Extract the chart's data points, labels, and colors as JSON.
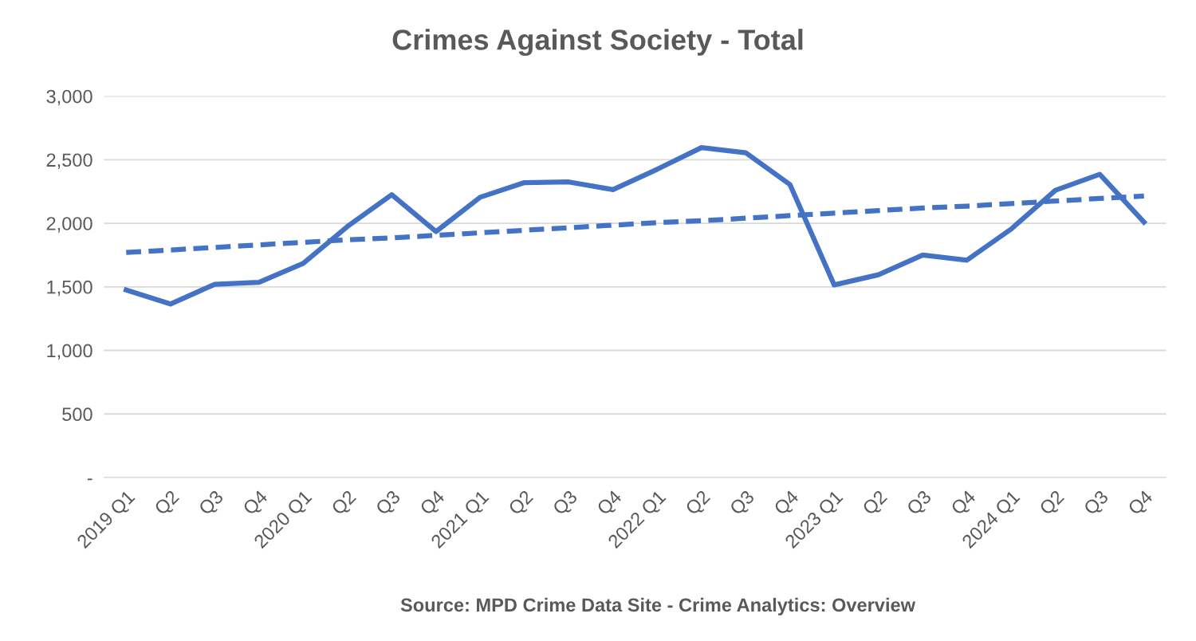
{
  "chart_data": {
    "type": "line",
    "title": "Crimes Against Society - Total",
    "categories": [
      "2019 Q1",
      "Q2",
      "Q3",
      "Q4",
      "2020 Q1",
      "Q2",
      "Q3",
      "Q4",
      "2021 Q1",
      "Q2",
      "Q3",
      "Q4",
      "2022 Q1",
      "Q2",
      "Q3",
      "Q4",
      "2023 Q1",
      "Q2",
      "Q3",
      "Q4",
      "2024 Q1",
      "Q2",
      "Q3",
      "Q4"
    ],
    "series": [
      {
        "color": "#4472c4",
        "line_style": "solid",
        "values": [
          1475,
          1365,
          1520,
          1535,
          1685,
          1975,
          2225,
          1935,
          2205,
          2320,
          2325,
          2265,
          2425,
          2595,
          2555,
          2305,
          1515,
          1595,
          1750,
          1710,
          1955,
          2260,
          2385,
          2010
        ]
      },
      {
        "color": "#4472c4",
        "line_style": "dashed",
        "values": [
          1770,
          1790,
          1810,
          1830,
          1850,
          1870,
          1885,
          1905,
          1925,
          1945,
          1965,
          1985,
          2005,
          2020,
          2040,
          2060,
          2080,
          2100,
          2120,
          2135,
          2155,
          2175,
          2195,
          2215
        ]
      }
    ],
    "ylim": [
      0,
      3000
    ],
    "yticks": [
      {
        "value": 0,
        "label": "-"
      },
      {
        "value": 500,
        "label": "500"
      },
      {
        "value": 1000,
        "label": "1,000"
      },
      {
        "value": 1500,
        "label": "1,500"
      },
      {
        "value": 2000,
        "label": "2,000"
      },
      {
        "value": 2500,
        "label": "2,500"
      },
      {
        "value": 3000,
        "label": "3,000"
      }
    ],
    "grid": "y",
    "marker": "none",
    "annotations": [
      "Source: MPD Crime Data Site - Crime Analytics: Overview"
    ]
  }
}
